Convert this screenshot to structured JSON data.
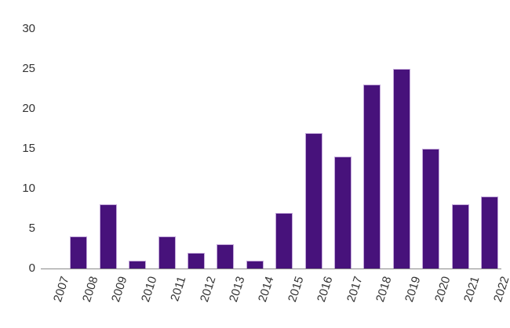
{
  "chart_data": {
    "type": "bar",
    "title": "",
    "xlabel": "",
    "ylabel": "",
    "categories": [
      "2007",
      "2008",
      "2009",
      "2010",
      "2011",
      "2012",
      "2013",
      "2014",
      "2015",
      "2016",
      "2017",
      "2018",
      "2019",
      "2020",
      "2021",
      "2022"
    ],
    "values": [
      0,
      4,
      8,
      1,
      4,
      2,
      3,
      1,
      7,
      17,
      14,
      23,
      25,
      15,
      8,
      9
    ],
    "ylim": [
      0,
      30
    ],
    "yticks": [
      0,
      5,
      10,
      15,
      20,
      25,
      30
    ],
    "grid": false,
    "legend": "none",
    "colors": {
      "bar_fill": "#47127b",
      "bar_stroke": "#c3a8da",
      "axis_line": "#8a8a8a",
      "tick_text": "#333333"
    }
  }
}
